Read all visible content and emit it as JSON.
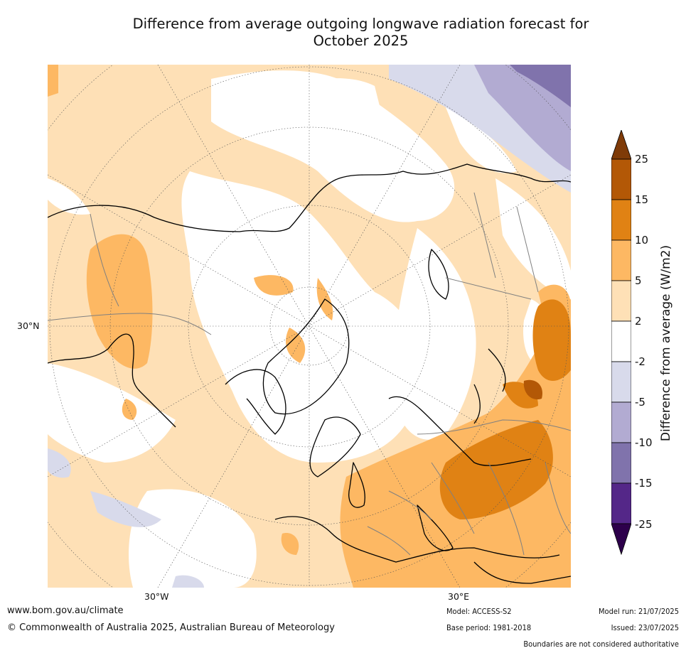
{
  "title": {
    "line1": "Difference from average outgoing longwave radiation forecast for",
    "line2": "October 2025"
  },
  "map": {
    "projection": "north polar stereographic",
    "lat_labels": [
      "30°N"
    ],
    "lon_labels": [
      "30°W",
      "30°E"
    ]
  },
  "colorbar": {
    "label": "Difference from average (W/m2)",
    "ticks": [
      "25",
      "15",
      "10",
      "5",
      "2",
      "-2",
      "-5",
      "-10",
      "-15",
      "-25"
    ],
    "bins": [
      {
        "range": "above 25",
        "color": "#7f3b08"
      },
      {
        "range": "15 to 25",
        "color": "#b35806"
      },
      {
        "range": "10 to 15",
        "color": "#e08214"
      },
      {
        "range": "5 to 10",
        "color": "#fdb863"
      },
      {
        "range": "2 to 5",
        "color": "#fee0b6"
      },
      {
        "range": "-2 to 2",
        "color": "#ffffff"
      },
      {
        "range": "-5 to -2",
        "color": "#d8daeb"
      },
      {
        "range": "-10 to -5",
        "color": "#b2abd2"
      },
      {
        "range": "-15 to -10",
        "color": "#8073ac"
      },
      {
        "range": "-25 to -15",
        "color": "#542788"
      },
      {
        "range": "below -25",
        "color": "#2d004b"
      }
    ]
  },
  "footer": {
    "url": "www.bom.gov.au/climate",
    "copyright": "© Commonwealth of Australia 2025, Australian Bureau of Meteorology",
    "model": "Model: ACCESS-S2",
    "base_period": "Base period: 1981-2018",
    "model_run": "Model run: 21/07/2025",
    "issued": "Issued: 23/07/2025",
    "disclaimer": "Boundaries are not considered authoritative"
  }
}
